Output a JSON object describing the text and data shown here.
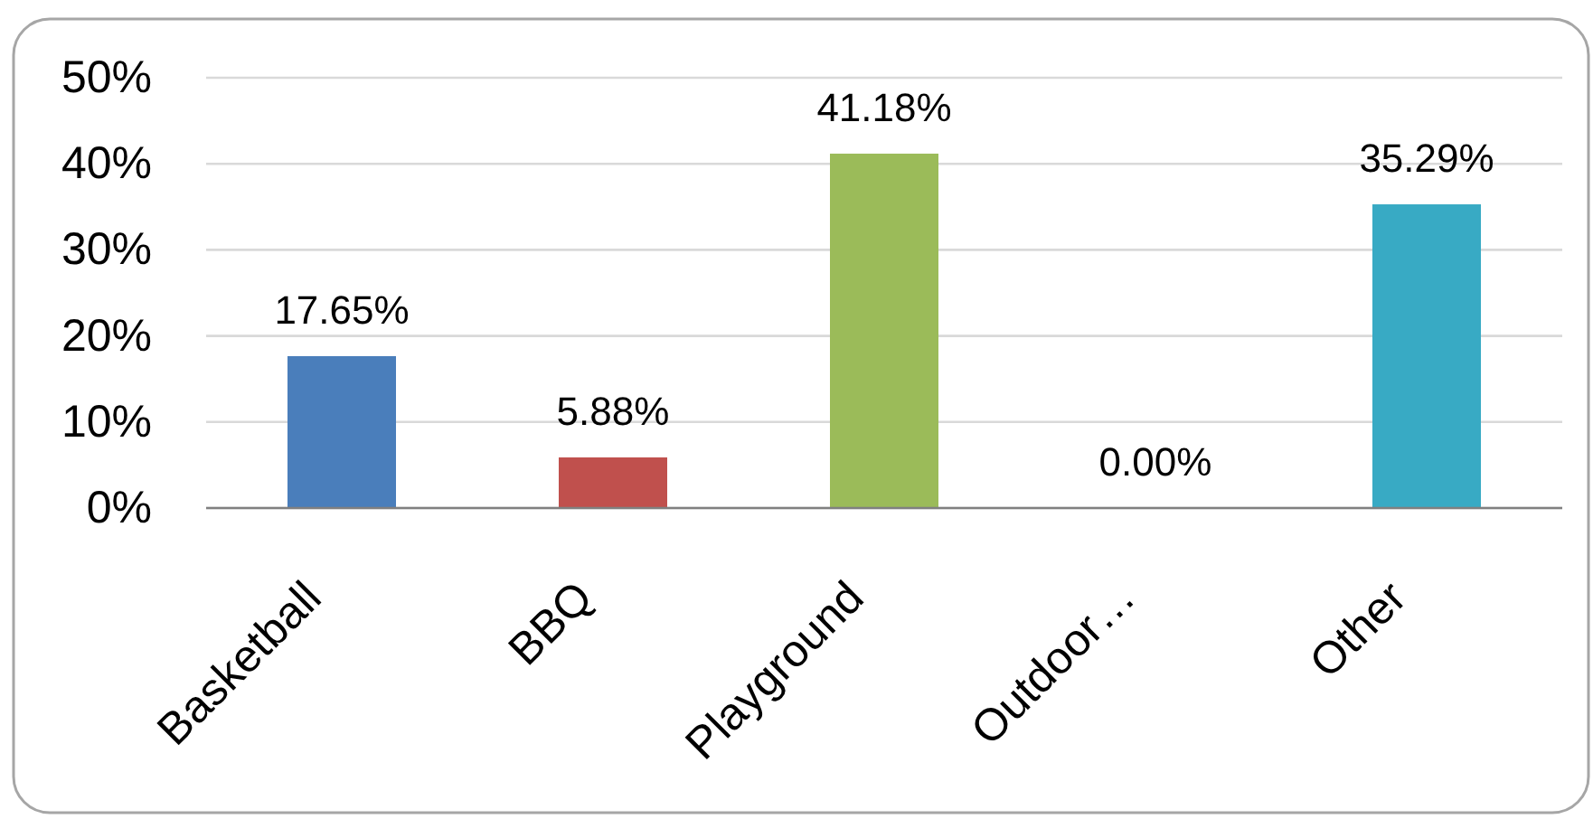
{
  "chart_data": {
    "type": "bar",
    "categories": [
      "Basketball",
      "BBQ",
      "Playground",
      "Outdoor…",
      "Other"
    ],
    "values": [
      17.65,
      5.88,
      41.18,
      0,
      35.29
    ],
    "colors": [
      "#4a7ebb",
      "#c0504d",
      "#9bbb59",
      "#8064a2",
      "#38aac4"
    ],
    "value_labels": [
      "17.65%",
      "5.88%",
      "41.18%",
      "0.00%",
      "35.29%"
    ],
    "ylim": [
      0,
      50
    ],
    "yticks": [
      {
        "value": 0,
        "label": "0%"
      },
      {
        "value": 10,
        "label": "10%"
      },
      {
        "value": 20,
        "label": "20%"
      },
      {
        "value": 30,
        "label": "30%"
      },
      {
        "value": 40,
        "label": "40%"
      },
      {
        "value": 50,
        "label": "50%"
      }
    ],
    "grid": "y"
  }
}
